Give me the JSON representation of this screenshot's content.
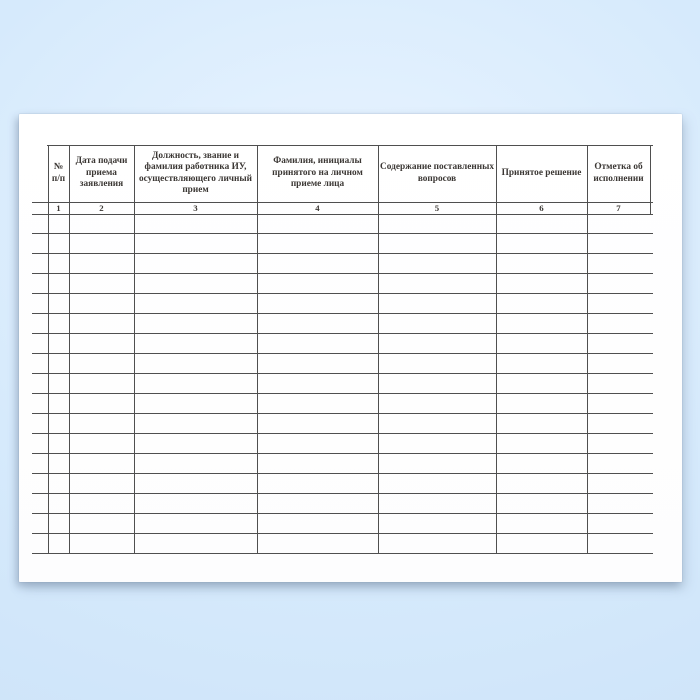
{
  "page": {
    "background_color": "#d6eafc",
    "paper_color": "#ffffff",
    "line_color": "#4f4f4f",
    "text_color": "#3b3734"
  },
  "table": {
    "columns": [
      {
        "number": "1",
        "header": "№ п/п"
      },
      {
        "number": "2",
        "header": "Дата подачи приема заявления"
      },
      {
        "number": "3",
        "header": "Должность, звание и фамилия работника ИУ, осуществляющего личный прием"
      },
      {
        "number": "4",
        "header": "Фамилия, инициалы принятого на личном приеме лица"
      },
      {
        "number": "5",
        "header": "Содержание поставленных вопросов"
      },
      {
        "number": "6",
        "header": "Принятое решение"
      },
      {
        "number": "7",
        "header": "Отметка об исполнении"
      }
    ],
    "body_rows": 17
  }
}
